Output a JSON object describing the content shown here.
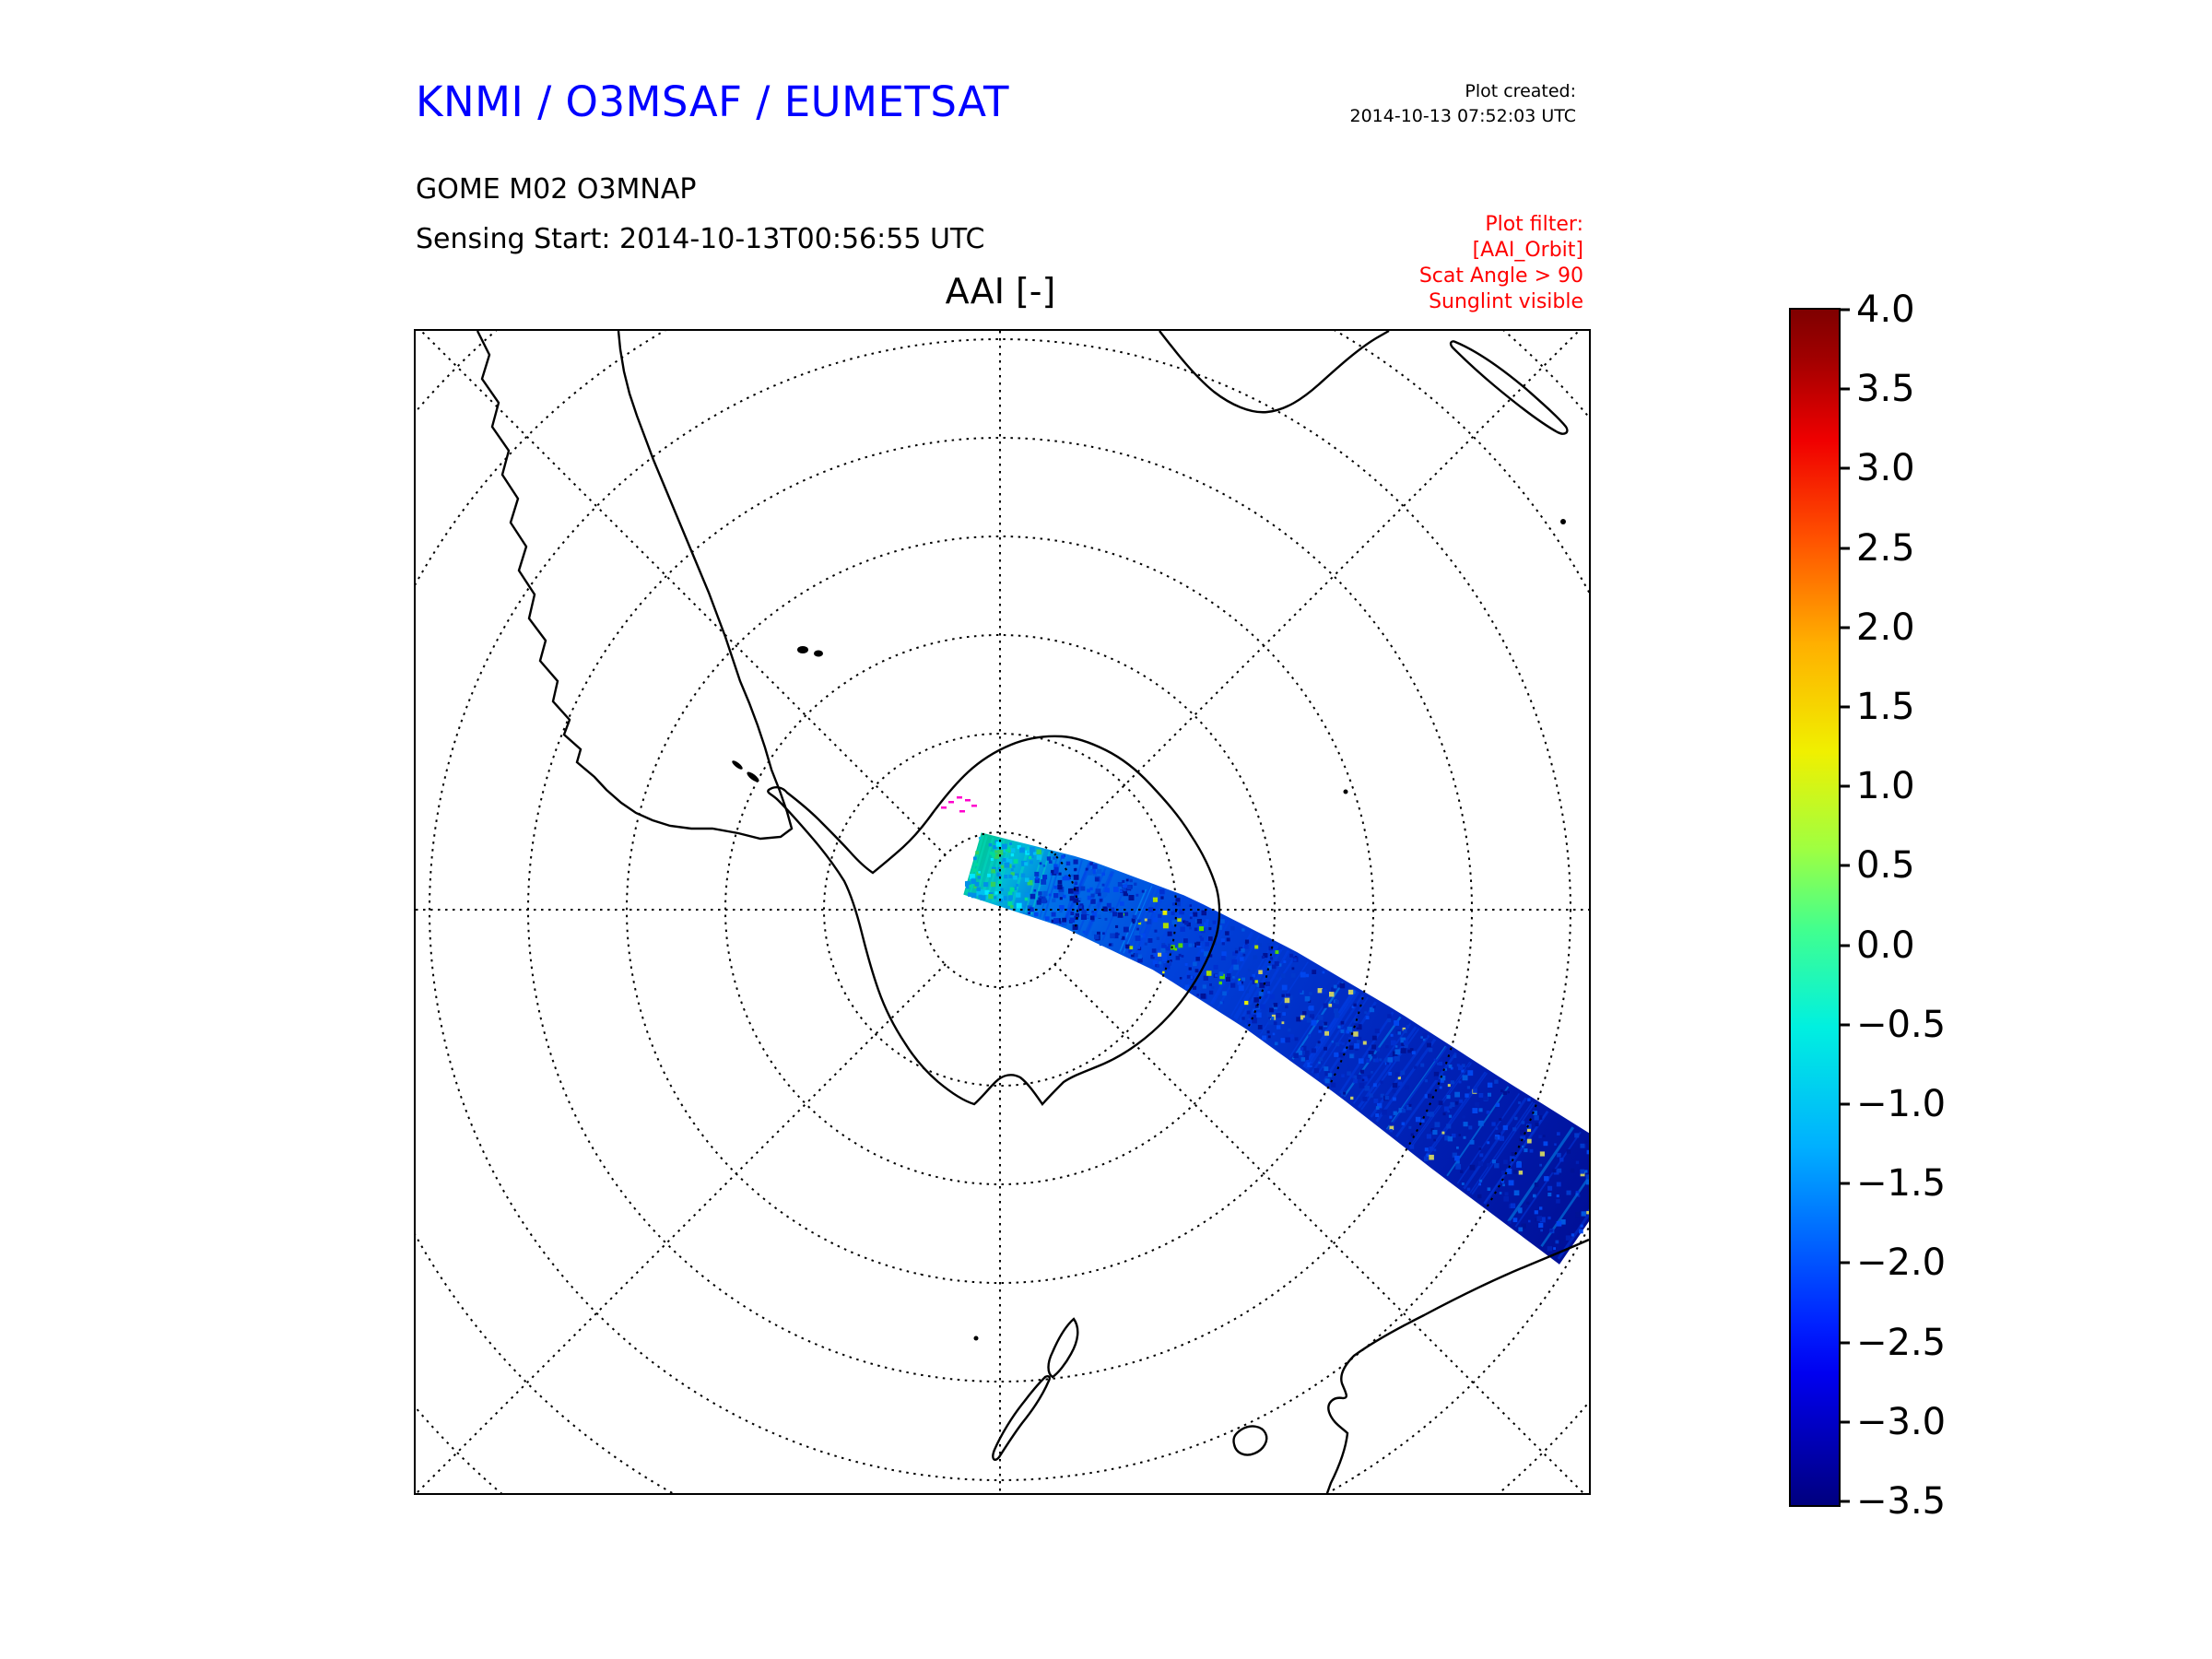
{
  "header": {
    "title": "KNMI / O3MSAF / EUMETSAT",
    "title_color": "#0000ff",
    "plot_created_label": "Plot created:",
    "plot_created_value": "2014-10-13 07:52:03 UTC",
    "product_line": "GOME M02 O3MNAP",
    "sensing_line": "Sensing Start: 2014-10-13T00:56:55 UTC",
    "filter": {
      "color": "#ff0000",
      "lines": [
        "Plot filter:",
        "[AAI_Orbit]",
        "Scat Angle > 90",
        "Sunglint visible"
      ]
    }
  },
  "chart_data": {
    "type": "heatmap",
    "title": "AAI [-]",
    "projection": "south polar stereographic",
    "region": "Antarctica / Southern Ocean with South America, southern Africa, Madagascar, Australia and New Zealand coastlines",
    "grid": "dotted graticule: concentric latitude circles every 10 degrees, meridians every 45 degrees",
    "colormap": "jet",
    "colorbar": {
      "min": -3.5,
      "max": 4.0,
      "tick_step": 0.5,
      "tick_labels": [
        "4.0",
        "3.5",
        "3.0",
        "2.5",
        "2.0",
        "1.5",
        "1.0",
        "0.5",
        "0.0",
        "−0.5",
        "−1.0",
        "−1.5",
        "−2.0",
        "−2.5",
        "−3.0",
        "−3.5"
      ]
    },
    "swath": {
      "description": "Single GOME-2 (MetOp-A) orbit swath starting near the South Pole and arcing east-northeast across East Antarctica toward the Australian sector",
      "dominant_value_range": [
        -3.0,
        -1.5
      ],
      "highlight_value_range": [
        -1.0,
        1.0
      ],
      "bright_end": "near-pole end of swath shows green/cyan (higher AAI) values",
      "flagged_pixels_color": "#ff00cc"
    }
  }
}
